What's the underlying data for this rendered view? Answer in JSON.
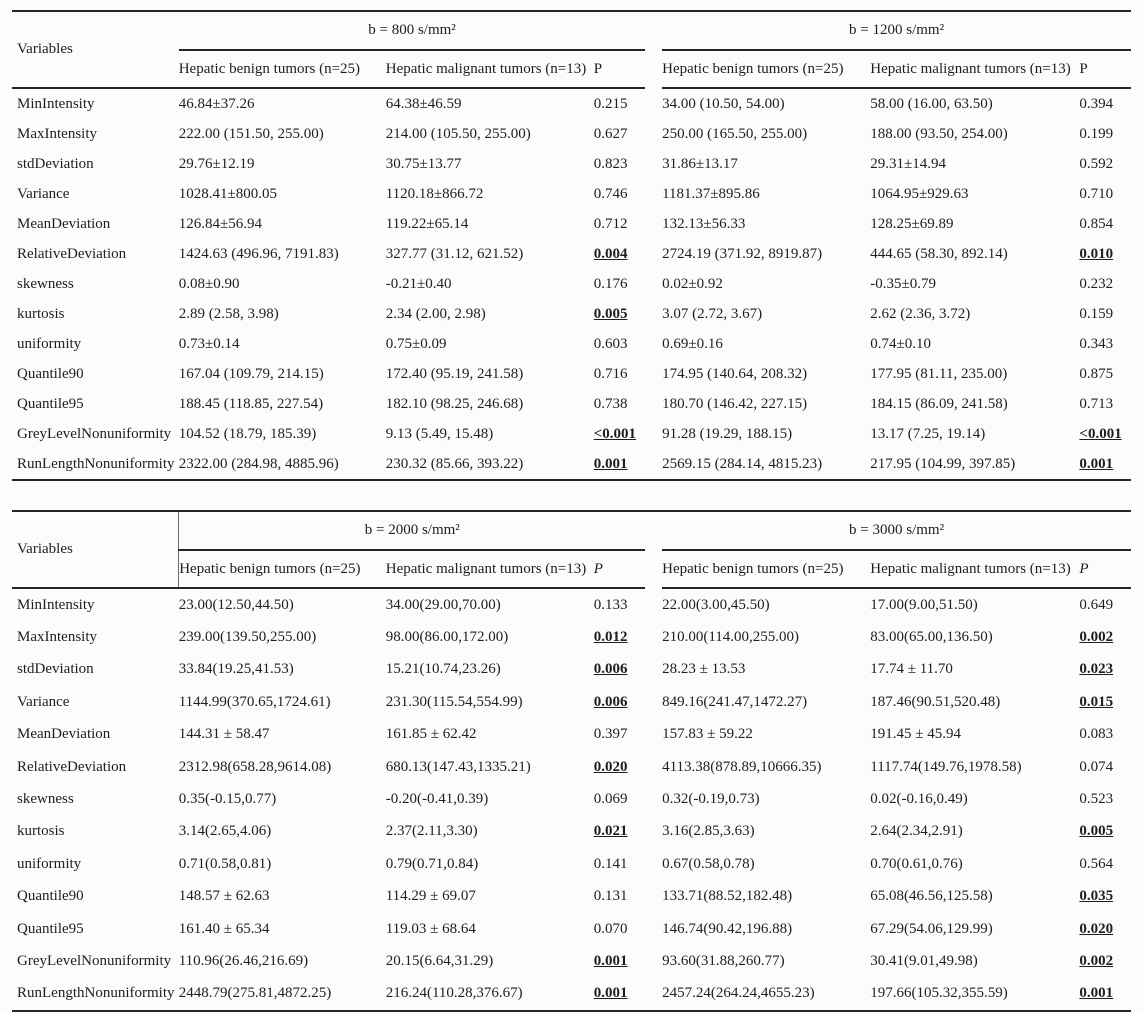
{
  "page": {
    "background": "#fcfcfc",
    "text_color": "#1e1e1e",
    "rule_color": "#262626"
  },
  "column_headers": {
    "variables": "Variables",
    "benign": "Hepatic benign tumors (n=25)",
    "malignant": "Hepatic malignant tumors (n=13)",
    "p": "P"
  },
  "blocks": [
    {
      "b_left": "b = 800 s/mm²",
      "b_right": "b = 1200 s/mm²",
      "rows": [
        {
          "v": "MinIntensity",
          "b1": "46.84±37.26",
          "m1": "64.38±46.59",
          "p1": "0.215",
          "sig1": false,
          "b2": "34.00 (10.50, 54.00)",
          "m2": "58.00 (16.00, 63.50)",
          "p2": "0.394",
          "sig2": false
        },
        {
          "v": "MaxIntensity",
          "b1": "222.00 (151.50, 255.00)",
          "m1": "214.00 (105.50, 255.00)",
          "p1": "0.627",
          "sig1": false,
          "b2": "250.00 (165.50, 255.00)",
          "m2": "188.00 (93.50, 254.00)",
          "p2": "0.199",
          "sig2": false
        },
        {
          "v": "stdDeviation",
          "b1": "29.76±12.19",
          "m1": "30.75±13.77",
          "p1": "0.823",
          "sig1": false,
          "b2": "31.86±13.17",
          "m2": "29.31±14.94",
          "p2": "0.592",
          "sig2": false
        },
        {
          "v": "Variance",
          "b1": "1028.41±800.05",
          "m1": "1120.18±866.72",
          "p1": "0.746",
          "sig1": false,
          "b2": "1181.37±895.86",
          "m2": "1064.95±929.63",
          "p2": "0.710",
          "sig2": false
        },
        {
          "v": "MeanDeviation",
          "b1": "126.84±56.94",
          "m1": "119.22±65.14",
          "p1": "0.712",
          "sig1": false,
          "b2": "132.13±56.33",
          "m2": "128.25±69.89",
          "p2": "0.854",
          "sig2": false
        },
        {
          "v": "RelativeDeviation",
          "b1": "1424.63 (496.96, 7191.83)",
          "m1": "327.77 (31.12, 621.52)",
          "p1": "0.004",
          "sig1": true,
          "b2": "2724.19 (371.92, 8919.87)",
          "m2": "444.65 (58.30, 892.14)",
          "p2": "0.010",
          "sig2": true
        },
        {
          "v": "skewness",
          "b1": "0.08±0.90",
          "m1": "-0.21±0.40",
          "p1": "0.176",
          "sig1": false,
          "b2": "0.02±0.92",
          "m2": "-0.35±0.79",
          "p2": "0.232",
          "sig2": false
        },
        {
          "v": "kurtosis",
          "b1": "2.89 (2.58, 3.98)",
          "m1": "2.34 (2.00, 2.98)",
          "p1": "0.005",
          "sig1": true,
          "b2": "3.07 (2.72, 3.67)",
          "m2": "2.62 (2.36, 3.72)",
          "p2": "0.159",
          "sig2": false
        },
        {
          "v": "uniformity",
          "b1": "0.73±0.14",
          "m1": "0.75±0.09",
          "p1": "0.603",
          "sig1": false,
          "b2": "0.69±0.16",
          "m2": "0.74±0.10",
          "p2": "0.343",
          "sig2": false
        },
        {
          "v": "Quantile90",
          "b1": "167.04 (109.79, 214.15)",
          "m1": "172.40 (95.19, 241.58)",
          "p1": "0.716",
          "sig1": false,
          "b2": "174.95 (140.64, 208.32)",
          "m2": "177.95 (81.11, 235.00)",
          "p2": "0.875",
          "sig2": false
        },
        {
          "v": "Quantile95",
          "b1": "188.45 (118.85, 227.54)",
          "m1": "182.10 (98.25, 246.68)",
          "p1": "0.738",
          "sig1": false,
          "b2": "180.70 (146.42, 227.15)",
          "m2": "184.15 (86.09, 241.58)",
          "p2": "0.713",
          "sig2": false
        },
        {
          "v": "GreyLevelNonuniformity",
          "b1": "104.52 (18.79, 185.39)",
          "m1": "9.13 (5.49, 15.48)",
          "p1": "<0.001",
          "sig1": true,
          "b2": "91.28 (19.29, 188.15)",
          "m2": "13.17 (7.25, 19.14)",
          "p2": "<0.001",
          "sig2": true
        },
        {
          "v": "RunLengthNonuniformity",
          "b1": "2322.00 (284.98, 4885.96)",
          "m1": "230.32 (85.66, 393.22)",
          "p1": "0.001",
          "sig1": true,
          "b2": "2569.15 (284.14, 4815.23)",
          "m2": "217.95 (104.99, 397.85)",
          "p2": "0.001",
          "sig2": true
        }
      ]
    },
    {
      "b_left": "b = 2000 s/mm²",
      "b_right": "b = 3000 s/mm²",
      "rows": [
        {
          "v": "MinIntensity",
          "b1": "23.00(12.50,44.50)",
          "m1": "34.00(29.00,70.00)",
          "p1": "0.133",
          "sig1": false,
          "b2": "22.00(3.00,45.50)",
          "m2": "17.00(9.00,51.50)",
          "p2": "0.649",
          "sig2": false
        },
        {
          "v": "MaxIntensity",
          "b1": "239.00(139.50,255.00)",
          "m1": "98.00(86.00,172.00)",
          "p1": "0.012",
          "sig1": true,
          "b2": "210.00(114.00,255.00)",
          "m2": "83.00(65.00,136.50)",
          "p2": "0.002",
          "sig2": true
        },
        {
          "v": "stdDeviation",
          "b1": "33.84(19.25,41.53)",
          "m1": "15.21(10.74,23.26)",
          "p1": "0.006",
          "sig1": true,
          "b2": "28.23 ± 13.53",
          "m2": "17.74 ± 11.70",
          "p2": "0.023",
          "sig2": true
        },
        {
          "v": "Variance",
          "b1": "1144.99(370.65,1724.61)",
          "m1": "231.30(115.54,554.99)",
          "p1": "0.006",
          "sig1": true,
          "b2": "849.16(241.47,1472.27)",
          "m2": "187.46(90.51,520.48)",
          "p2": "0.015",
          "sig2": true
        },
        {
          "v": "MeanDeviation",
          "b1": "144.31 ± 58.47",
          "m1": "161.85 ± 62.42",
          "p1": "0.397",
          "sig1": false,
          "b2": "157.83 ± 59.22",
          "m2": "191.45 ± 45.94",
          "p2": "0.083",
          "sig2": false
        },
        {
          "v": "RelativeDeviation",
          "b1": "2312.98(658.28,9614.08)",
          "m1": "680.13(147.43,1335.21)",
          "p1": "0.020",
          "sig1": true,
          "b2": "4113.38(878.89,10666.35)",
          "m2": "1117.74(149.76,1978.58)",
          "p2": "0.074",
          "sig2": false
        },
        {
          "v": "skewness",
          "b1": "0.35(-0.15,0.77)",
          "m1": "-0.20(-0.41,0.39)",
          "p1": "0.069",
          "sig1": false,
          "b2": "0.32(-0.19,0.73)",
          "m2": "0.02(-0.16,0.49)",
          "p2": "0.523",
          "sig2": false
        },
        {
          "v": "kurtosis",
          "b1": "3.14(2.65,4.06)",
          "m1": "2.37(2.11,3.30)",
          "p1": "0.021",
          "sig1": true,
          "b2": "3.16(2.85,3.63)",
          "m2": "2.64(2.34,2.91)",
          "p2": "0.005",
          "sig2": true
        },
        {
          "v": "uniformity",
          "b1": "0.71(0.58,0.81)",
          "m1": "0.79(0.71,0.84)",
          "p1": "0.141",
          "sig1": false,
          "b2": "0.67(0.58,0.78)",
          "m2": "0.70(0.61,0.76)",
          "p2": "0.564",
          "sig2": false
        },
        {
          "v": "Quantile90",
          "b1": "148.57 ± 62.63",
          "m1": "114.29 ± 69.07",
          "p1": "0.131",
          "sig1": false,
          "b2": "133.71(88.52,182.48)",
          "m2": "65.08(46.56,125.58)",
          "p2": "0.035",
          "sig2": true
        },
        {
          "v": "Quantile95",
          "b1": "161.40 ± 65.34",
          "m1": "119.03 ± 68.64",
          "p1": "0.070",
          "sig1": false,
          "b2": "146.74(90.42,196.88)",
          "m2": "67.29(54.06,129.99)",
          "p2": "0.020",
          "sig2": true
        },
        {
          "v": "GreyLevelNonuniformity",
          "b1": "110.96(26.46,216.69)",
          "m1": "20.15(6.64,31.29)",
          "p1": "0.001",
          "sig1": true,
          "b2": "93.60(31.88,260.77)",
          "m2": "30.41(9.01,49.98)",
          "p2": "0.002",
          "sig2": true
        },
        {
          "v": "RunLengthNonuniformity",
          "b1": "2448.79(275.81,4872.25)",
          "m1": "216.24(110.28,376.67)",
          "p1": "0.001",
          "sig1": true,
          "b2": "2457.24(264.24,4655.23)",
          "m2": "197.66(105.32,355.59)",
          "p2": "0.001",
          "sig2": true
        }
      ]
    }
  ]
}
